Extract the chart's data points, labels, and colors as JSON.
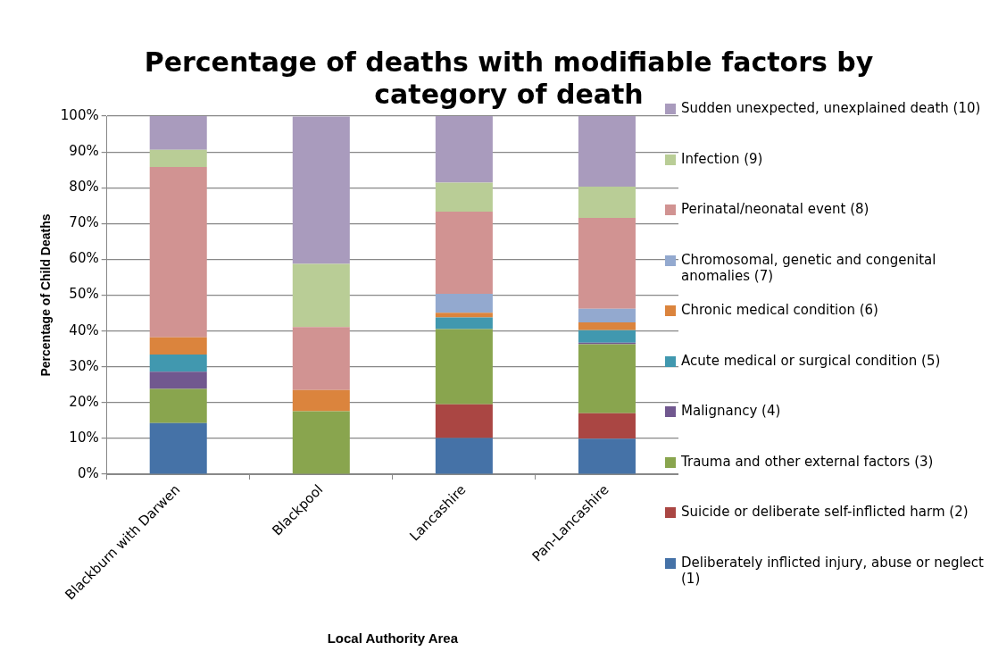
{
  "chart_data": {
    "type": "bar",
    "title": "Percentage of deaths with modifiable factors by category of death",
    "xlabel": "Local Authority Area",
    "ylabel": "Percentage of Child Deaths",
    "stacked": true,
    "grid": "y",
    "legend": "right",
    "categories": [
      "Blackburn with Darwen",
      "Blackpool",
      "Lancashire",
      "Pan-Lancashire"
    ],
    "ylim": [
      0,
      100
    ],
    "yticks": [
      {
        "value": 0,
        "label": "0%"
      },
      {
        "value": 10,
        "label": "10%"
      },
      {
        "value": 20,
        "label": "20%"
      },
      {
        "value": 30,
        "label": "30%"
      },
      {
        "value": 40,
        "label": "40%"
      },
      {
        "value": 50,
        "label": "50%"
      },
      {
        "value": 60,
        "label": "60%"
      },
      {
        "value": 70,
        "label": "70%"
      },
      {
        "value": 80,
        "label": "80%"
      },
      {
        "value": 90,
        "label": "90%"
      },
      {
        "value": 100,
        "label": "100%"
      }
    ],
    "series": [
      {
        "name": "Deliberately inflicted injury, abuse or neglect (1)",
        "color": "#4572a7",
        "values": [
          14.3,
          0,
          10.1,
          9.9
        ]
      },
      {
        "name": "Suicide or deliberate self-inflicted harm (2)",
        "color": "#aa4643",
        "values": [
          0,
          0,
          9.4,
          7.1
        ]
      },
      {
        "name": "Trauma and other external factors (3)",
        "color": "#89a54e",
        "values": [
          9.5,
          17.6,
          21.0,
          19.3
        ]
      },
      {
        "name": "Malignancy (4)",
        "color": "#71588f",
        "values": [
          4.8,
          0,
          0,
          0.4
        ]
      },
      {
        "name": "Acute medical or surgical condition (5)",
        "color": "#4198af",
        "values": [
          4.8,
          0,
          3.3,
          3.5
        ]
      },
      {
        "name": "Chronic medical condition (6)",
        "color": "#db843d",
        "values": [
          4.8,
          5.9,
          1.3,
          2.2
        ]
      },
      {
        "name": "Chromosomal, genetic and congenital anomalies (7)",
        "color": "#93a9cf",
        "values": [
          0,
          0,
          5.3,
          3.8
        ]
      },
      {
        "name": "Perinatal/neonatal event (8)",
        "color": "#d19392",
        "values": [
          47.6,
          17.6,
          22.9,
          25.4
        ]
      },
      {
        "name": "Infection (9)",
        "color": "#b9cd96",
        "values": [
          4.8,
          17.6,
          8.1,
          8.7
        ]
      },
      {
        "name": "Sudden unexpected, unexplained death (10)",
        "color": "#a99bbd",
        "values": [
          9.5,
          41.2,
          18.6,
          19.7
        ]
      }
    ]
  }
}
